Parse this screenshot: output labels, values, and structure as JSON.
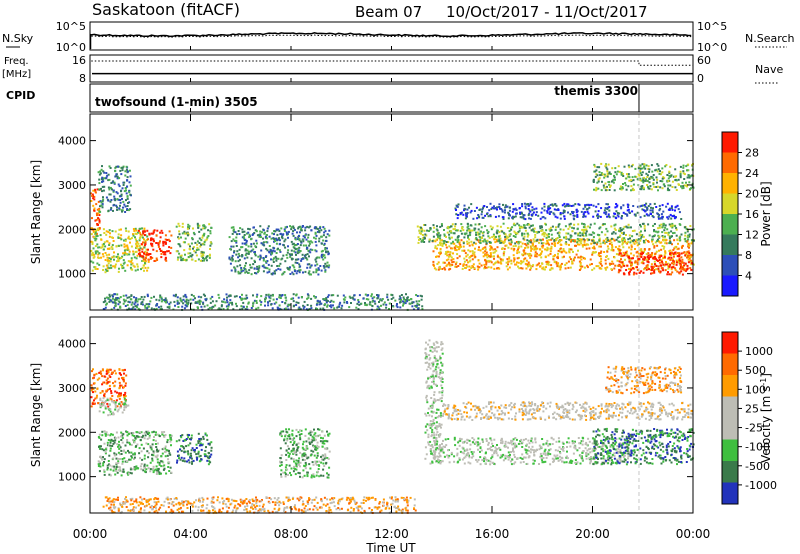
{
  "header": {
    "station": "Saskatoon (fitACF)",
    "beam": "Beam 07",
    "date_range": "10/Oct/2017 - 11/Oct/2017"
  },
  "left_labels": {
    "nsky": "N.Sky",
    "freq_line1": "Freq.",
    "freq_line2": "[MHz]",
    "cpid": "CPID"
  },
  "right_labels": {
    "nsearch": "N.Search",
    "nave": "Nave"
  },
  "noise_panel": {
    "left_ticks": [
      "10^5",
      "10^0"
    ],
    "right_ticks": [
      "10^5",
      "10^0"
    ],
    "level_fraction_of_range": 0.55,
    "line_color": "#000000"
  },
  "freq_panel": {
    "left_ticks": [
      "16",
      "8"
    ],
    "right_ticks": [
      "60",
      "0"
    ],
    "freq_mhz": 10.5,
    "nave_fraction_of_range": 0.78,
    "nave_after_switch_fraction": 0.62
  },
  "cpid_panel": {
    "segments": [
      {
        "label": "twofsound (1-min) 3505",
        "start_hour": 0.0
      },
      {
        "label": "themis 3300",
        "start_hour": 21.85
      }
    ]
  },
  "x_axis": {
    "label": "Time UT",
    "ticks": [
      "00:00",
      "04:00",
      "08:00",
      "12:00",
      "16:00",
      "20:00",
      "00:00"
    ],
    "range_hours": [
      0,
      24
    ]
  },
  "chart_data": [
    {
      "type": "heatmap",
      "title": "",
      "ylabel": "Slant Range [km]",
      "ylim": [
        180,
        4600
      ],
      "yticks": [
        1000,
        2000,
        3000,
        4000
      ],
      "colorbar_label": "Power [dB]",
      "colorbar_ticks": [
        "28",
        "24",
        "20",
        "16",
        "12",
        "8",
        "4"
      ],
      "colors": [
        "#1a1aff",
        "#2d4fb8",
        "#357a5c",
        "#4caf50",
        "#d7d72a",
        "#ffb200",
        "#ff6a00",
        "#ff1a00"
      ],
      "scatter_regions": [
        {
          "t0": 0.0,
          "t1": 0.35,
          "r0": 1800,
          "r1": 2950,
          "level": 6
        },
        {
          "t0": 0.0,
          "t1": 2.3,
          "r0": 1050,
          "r1": 2050,
          "level": 4
        },
        {
          "t0": 1.9,
          "t1": 3.2,
          "r0": 1300,
          "r1": 2000,
          "level": 7
        },
        {
          "t0": 0.3,
          "t1": 1.6,
          "r0": 2400,
          "r1": 3450,
          "level": 2
        },
        {
          "t0": 3.4,
          "t1": 4.8,
          "r0": 1300,
          "r1": 2150,
          "level": 3
        },
        {
          "t0": 5.5,
          "t1": 9.5,
          "r0": 1000,
          "r1": 2100,
          "level": 2
        },
        {
          "t0": 0.5,
          "t1": 13.2,
          "r0": 200,
          "r1": 560,
          "level": 2
        },
        {
          "t0": 13.6,
          "t1": 24.0,
          "r0": 1100,
          "r1": 1800,
          "level": 5
        },
        {
          "t0": 13.0,
          "t1": 24.0,
          "r0": 1700,
          "r1": 2150,
          "level": 3
        },
        {
          "t0": 14.5,
          "t1": 23.5,
          "r0": 2250,
          "r1": 2600,
          "level": 1
        },
        {
          "t0": 20.0,
          "t1": 24.0,
          "r0": 2900,
          "r1": 3500,
          "level": 3
        },
        {
          "t0": 21.0,
          "t1": 24.0,
          "r0": 1000,
          "r1": 1500,
          "level": 7
        }
      ]
    },
    {
      "type": "heatmap",
      "title": "",
      "ylabel": "Slant Range [km]",
      "ylim": [
        180,
        4600
      ],
      "yticks": [
        1000,
        2000,
        3000,
        4000
      ],
      "colorbar_label": "Velocity [m s^-1]",
      "colorbar_ticks": [
        "1000",
        "500",
        "100",
        "25",
        "-25",
        "-100",
        "-500",
        "-1000"
      ],
      "colors": [
        "#2233bb",
        "#3a7a4a",
        "#3fbf3f",
        "#bdbdb5",
        "#bdbdb5",
        "#ff9b00",
        "#ff6a00",
        "#ff1a00"
      ],
      "scatter_regions": [
        {
          "t0": 0.0,
          "t1": 1.4,
          "r0": 2600,
          "r1": 3450,
          "level": 6
        },
        {
          "t0": 0.3,
          "t1": 3.2,
          "r0": 1050,
          "r1": 2050,
          "level": 2
        },
        {
          "t0": 0.3,
          "t1": 1.6,
          "r0": 2400,
          "r1": 2800,
          "level": 3
        },
        {
          "t0": 3.4,
          "t1": 4.8,
          "r0": 1300,
          "r1": 2000,
          "level": 1
        },
        {
          "t0": 7.5,
          "t1": 9.5,
          "r0": 1000,
          "r1": 2100,
          "level": 2
        },
        {
          "t0": 0.5,
          "t1": 13.0,
          "r0": 200,
          "r1": 560,
          "level": 5
        },
        {
          "t0": 13.5,
          "t1": 21.5,
          "r0": 1300,
          "r1": 1900,
          "level": 3
        },
        {
          "t0": 14.0,
          "t1": 24.0,
          "r0": 2300,
          "r1": 2700,
          "level": 4
        },
        {
          "t0": 20.0,
          "t1": 24.0,
          "r0": 1300,
          "r1": 2100,
          "level": 1
        },
        {
          "t0": 13.3,
          "t1": 14.0,
          "r0": 1400,
          "r1": 4100,
          "level": 3
        },
        {
          "t0": 20.5,
          "t1": 23.5,
          "r0": 2900,
          "r1": 3500,
          "level": 5
        }
      ]
    }
  ]
}
